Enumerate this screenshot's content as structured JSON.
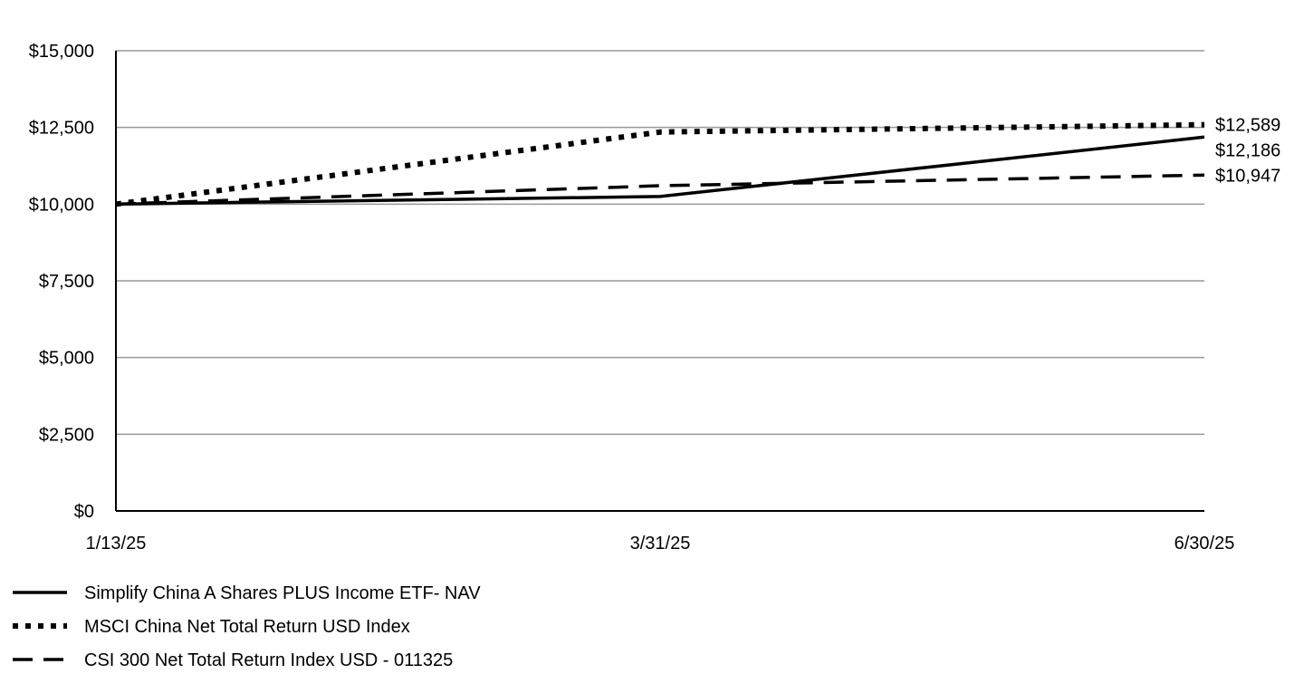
{
  "chart_data": {
    "type": "line",
    "x": [
      "1/13/25",
      "3/31/25",
      "6/30/25"
    ],
    "ylim": [
      0,
      15000
    ],
    "y_ticks": [
      0,
      2500,
      5000,
      7500,
      10000,
      12500,
      15000
    ],
    "y_tick_labels": [
      "$0",
      "$2,500",
      "$5,000",
      "$7,500",
      "$10,000",
      "$12,500",
      "$15,000"
    ],
    "grid": true,
    "legend_placement": "bottom-left",
    "series": [
      {
        "name": "Simplify China A Shares PLUS Income ETF- NAV",
        "style": "solid",
        "values": [
          10000,
          10250,
          12186
        ],
        "end_label": "$12,186"
      },
      {
        "name": "MSCI China Net Total Return USD Index",
        "style": "dotted",
        "values": [
          10000,
          12350,
          12589
        ],
        "end_label": "$12,589"
      },
      {
        "name": "CSI 300 Net Total Return Index USD - 011325",
        "style": "dashed",
        "values": [
          10000,
          10600,
          10947
        ],
        "end_label": "$10,947"
      }
    ],
    "colors": {
      "line": "#000000",
      "grid": "#999999"
    }
  }
}
